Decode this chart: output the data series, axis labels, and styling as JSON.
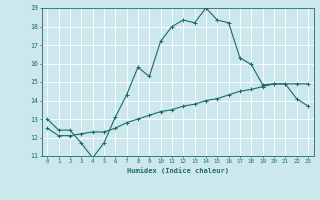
{
  "title": "",
  "xlabel": "Humidex (Indice chaleur)",
  "bg_color": "#cce8ec",
  "grid_color": "#ffffff",
  "line_color": "#1a6b6b",
  "xlim": [
    -0.5,
    23.5
  ],
  "ylim": [
    11,
    19
  ],
  "xticks": [
    0,
    1,
    2,
    3,
    4,
    5,
    6,
    7,
    8,
    9,
    10,
    11,
    12,
    13,
    14,
    15,
    16,
    17,
    18,
    19,
    20,
    21,
    22,
    23
  ],
  "yticks": [
    11,
    12,
    13,
    14,
    15,
    16,
    17,
    18,
    19
  ],
  "line1_x": [
    0,
    1,
    2,
    3,
    4,
    5,
    6,
    7,
    8,
    9,
    10,
    11,
    12,
    13,
    14,
    15,
    16,
    17,
    18,
    19,
    20,
    21,
    22,
    23
  ],
  "line1_y": [
    13.0,
    12.4,
    12.4,
    11.7,
    10.9,
    11.7,
    13.1,
    14.3,
    15.8,
    15.3,
    17.2,
    18.0,
    18.35,
    18.2,
    19.0,
    18.35,
    18.2,
    16.3,
    15.95,
    14.85,
    14.9,
    14.9,
    14.1,
    13.7
  ],
  "line2_x": [
    0,
    1,
    2,
    3,
    4,
    5,
    6,
    7,
    8,
    9,
    10,
    11,
    12,
    13,
    14,
    15,
    16,
    17,
    18,
    19,
    20,
    21,
    22,
    23
  ],
  "line2_y": [
    12.5,
    12.1,
    12.1,
    12.2,
    12.3,
    12.3,
    12.5,
    12.8,
    13.0,
    13.2,
    13.4,
    13.5,
    13.7,
    13.8,
    14.0,
    14.1,
    14.3,
    14.5,
    14.6,
    14.75,
    14.9,
    14.9,
    14.9,
    14.9
  ]
}
